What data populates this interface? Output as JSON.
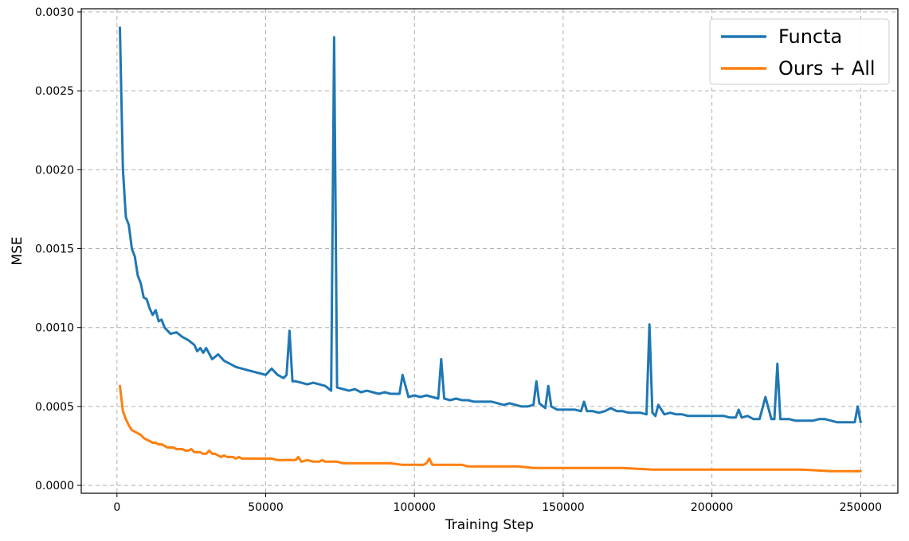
{
  "chart_data": {
    "type": "line",
    "title": "",
    "xlabel": "Training Step",
    "ylabel": "MSE",
    "xlim": [
      -12000,
      262500
    ],
    "ylim": [
      -5e-05,
      0.00302
    ],
    "x_ticks": [
      0,
      50000,
      100000,
      150000,
      200000,
      250000
    ],
    "x_tick_labels": [
      "0",
      "50000",
      "100000",
      "150000",
      "200000",
      "250000"
    ],
    "y_ticks": [
      0.0,
      0.0005,
      0.001,
      0.0015,
      0.002,
      0.0025,
      0.003
    ],
    "y_tick_labels": [
      "0.0000",
      "0.0005",
      "0.0010",
      "0.0015",
      "0.0020",
      "0.0025",
      "0.0030"
    ],
    "grid": true,
    "legend_position": "top-right",
    "series": [
      {
        "name": "Functa",
        "color": "#1f77b4",
        "x": [
          1000,
          2000,
          3000,
          4000,
          5000,
          6000,
          7000,
          8000,
          9000,
          10000,
          11000,
          12000,
          13000,
          14000,
          15000,
          16000,
          18000,
          20000,
          22000,
          24000,
          26000,
          27000,
          28000,
          29000,
          30000,
          32000,
          34000,
          36000,
          38000,
          40000,
          42000,
          44000,
          46000,
          48000,
          50000,
          52000,
          54000,
          56000,
          57000,
          58000,
          59000,
          60000,
          62000,
          64000,
          66000,
          68000,
          70000,
          72000,
          73000,
          74000,
          76000,
          78000,
          80000,
          82000,
          84000,
          86000,
          88000,
          90000,
          92000,
          94000,
          95000,
          96000,
          98000,
          100000,
          102000,
          104000,
          106000,
          108000,
          109000,
          110000,
          112000,
          114000,
          116000,
          118000,
          120000,
          122000,
          124000,
          126000,
          128000,
          130000,
          132000,
          134000,
          136000,
          138000,
          140000,
          141000,
          142000,
          144000,
          145000,
          146000,
          148000,
          150000,
          152000,
          154000,
          156000,
          157000,
          158000,
          160000,
          162000,
          164000,
          166000,
          168000,
          170000,
          172000,
          174000,
          176000,
          178000,
          179000,
          180000,
          181000,
          182000,
          184000,
          186000,
          188000,
          190000,
          192000,
          194000,
          196000,
          198000,
          200000,
          202000,
          204000,
          206000,
          208000,
          209000,
          210000,
          212000,
          214000,
          216000,
          218000,
          220000,
          221000,
          222000,
          223000,
          224000,
          226000,
          228000,
          230000,
          232000,
          234000,
          236000,
          238000,
          240000,
          242000,
          244000,
          246000,
          248000,
          249000,
          250000
        ],
        "y": [
          0.0029,
          0.002,
          0.0017,
          0.00165,
          0.0015,
          0.00145,
          0.00133,
          0.00128,
          0.00119,
          0.00118,
          0.00112,
          0.00108,
          0.00111,
          0.00104,
          0.00105,
          0.001,
          0.00096,
          0.00097,
          0.00094,
          0.00092,
          0.00089,
          0.00085,
          0.00087,
          0.00084,
          0.00087,
          0.0008,
          0.00083,
          0.00079,
          0.00077,
          0.00075,
          0.00074,
          0.00073,
          0.00072,
          0.00071,
          0.0007,
          0.00074,
          0.0007,
          0.00068,
          0.0007,
          0.00098,
          0.00066,
          0.00066,
          0.00065,
          0.00064,
          0.00065,
          0.00064,
          0.00063,
          0.0006,
          0.00284,
          0.00062,
          0.00061,
          0.0006,
          0.00061,
          0.00059,
          0.0006,
          0.00059,
          0.00058,
          0.00059,
          0.00058,
          0.00058,
          0.00058,
          0.0007,
          0.00056,
          0.00057,
          0.00056,
          0.00057,
          0.00056,
          0.00055,
          0.0008,
          0.00055,
          0.00054,
          0.00055,
          0.00054,
          0.00054,
          0.00053,
          0.00053,
          0.00053,
          0.00053,
          0.00052,
          0.00051,
          0.00052,
          0.00051,
          0.0005,
          0.0005,
          0.00051,
          0.00066,
          0.00052,
          0.00049,
          0.00063,
          0.0005,
          0.00048,
          0.00048,
          0.00048,
          0.00048,
          0.00047,
          0.00053,
          0.00047,
          0.00047,
          0.00046,
          0.00047,
          0.00049,
          0.00047,
          0.00047,
          0.00046,
          0.00046,
          0.00046,
          0.00045,
          0.00102,
          0.00046,
          0.00044,
          0.00051,
          0.00045,
          0.00046,
          0.00045,
          0.00045,
          0.00044,
          0.00044,
          0.00044,
          0.00044,
          0.00044,
          0.00044,
          0.00044,
          0.00043,
          0.00043,
          0.00048,
          0.00043,
          0.00044,
          0.00042,
          0.00042,
          0.00056,
          0.00042,
          0.00042,
          0.00077,
          0.00042,
          0.00042,
          0.00042,
          0.00041,
          0.00041,
          0.00041,
          0.00041,
          0.00042,
          0.00042,
          0.00041,
          0.0004,
          0.0004,
          0.0004,
          0.0004,
          0.0005,
          0.0004
        ]
      },
      {
        "name": "Ours + All",
        "color": "#ff7f0e",
        "x": [
          1000,
          2000,
          3000,
          4000,
          5000,
          6000,
          7000,
          8000,
          9000,
          10000,
          11000,
          12000,
          13000,
          14000,
          15000,
          16000,
          17000,
          18000,
          19000,
          20000,
          21000,
          22000,
          23000,
          24000,
          25000,
          26000,
          27000,
          28000,
          29000,
          30000,
          31000,
          32000,
          33000,
          34000,
          35000,
          36000,
          37000,
          38000,
          39000,
          40000,
          41000,
          42000,
          43000,
          44000,
          45000,
          46000,
          48000,
          50000,
          52000,
          54000,
          56000,
          58000,
          60000,
          61000,
          62000,
          64000,
          66000,
          68000,
          69000,
          70000,
          72000,
          74000,
          76000,
          78000,
          80000,
          84000,
          88000,
          92000,
          96000,
          100000,
          103000,
          104000,
          105000,
          106000,
          108000,
          110000,
          112000,
          114000,
          116000,
          118000,
          122000,
          126000,
          130000,
          135000,
          140000,
          145000,
          150000,
          160000,
          170000,
          180000,
          190000,
          200000,
          210000,
          220000,
          230000,
          240000,
          250000
        ],
        "y": [
          0.00063,
          0.00047,
          0.00042,
          0.00038,
          0.00035,
          0.00034,
          0.00033,
          0.00032,
          0.0003,
          0.00029,
          0.00028,
          0.00027,
          0.00027,
          0.00026,
          0.00026,
          0.00025,
          0.00024,
          0.00024,
          0.00024,
          0.00023,
          0.00023,
          0.00023,
          0.00022,
          0.00022,
          0.00023,
          0.00021,
          0.00021,
          0.00021,
          0.0002,
          0.0002,
          0.00022,
          0.0002,
          0.0002,
          0.00019,
          0.00018,
          0.00019,
          0.00018,
          0.00018,
          0.00018,
          0.00017,
          0.00018,
          0.00017,
          0.00017,
          0.00017,
          0.00017,
          0.00017,
          0.00017,
          0.00017,
          0.00017,
          0.00016,
          0.00016,
          0.00016,
          0.00016,
          0.00018,
          0.00015,
          0.00016,
          0.00015,
          0.00015,
          0.00016,
          0.00015,
          0.00015,
          0.00015,
          0.00014,
          0.00014,
          0.00014,
          0.00014,
          0.00014,
          0.00014,
          0.00013,
          0.00013,
          0.00013,
          0.00014,
          0.00017,
          0.00013,
          0.00013,
          0.00013,
          0.00013,
          0.00013,
          0.00013,
          0.00012,
          0.00012,
          0.00012,
          0.00012,
          0.00012,
          0.00011,
          0.00011,
          0.00011,
          0.00011,
          0.00011,
          0.0001,
          0.0001,
          0.0001,
          0.0001,
          0.0001,
          0.0001,
          9e-05,
          9e-05
        ]
      }
    ]
  }
}
